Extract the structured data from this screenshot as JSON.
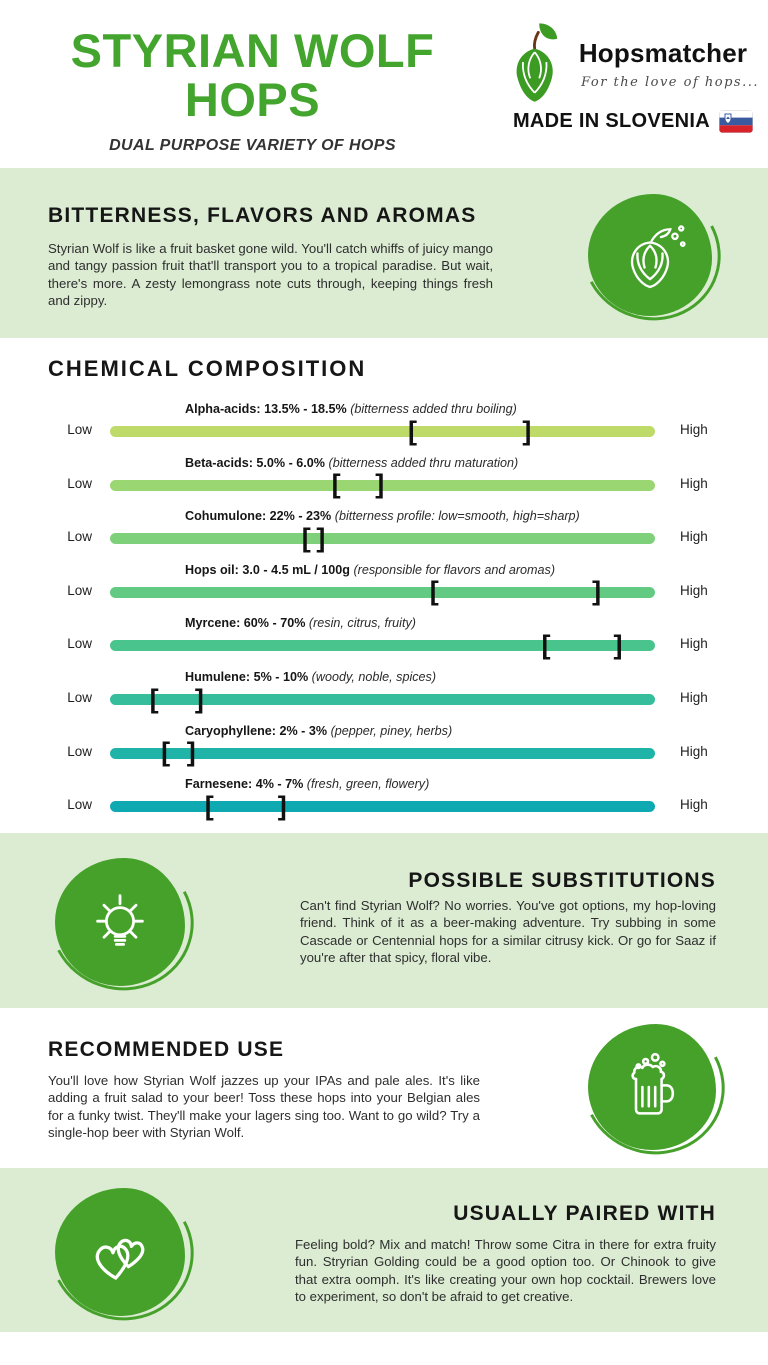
{
  "colors": {
    "title_green": "#43a42e",
    "section_bg_green": "#dcecd3",
    "icon_circle_green": "#46a12b",
    "heading_ink": "#161616",
    "body_text": "#2e2e2e"
  },
  "header": {
    "title_line1": "STYRIAN WOLF",
    "title_line2": "HOPS",
    "subtitle": "DUAL PURPOSE VARIETY OF HOPS",
    "brand_name": "Hopsmatcher",
    "brand_tagline": "For the love of hops...",
    "made_in": "MADE IN SLOVENIA"
  },
  "sections": {
    "aromas": {
      "title": "BITTERNESS, FLAVORS AND AROMAS",
      "body": "Styrian Wolf is like a fruit basket gone wild. You'll catch whiffs of juicy mango and tangy passion fruit that'll transport you to a tropical paradise. But wait, there's more. A zesty lemongrass note cuts through, keeping things fresh and zippy."
    },
    "chemical": {
      "title": "CHEMICAL COMPOSITION",
      "low_label": "Low",
      "high_label": "High",
      "range_marker_open": "[",
      "range_marker_close": "]",
      "bars": [
        {
          "label": "Alpha-acids: 13.5% - 18.5%",
          "note": "(bitterness added thru boiling)",
          "color": "#bedb69",
          "range_start_pct": 55.5,
          "range_end_pct": 76.5
        },
        {
          "label": "Beta-acids: 5.0% - 6.0%",
          "note": "(bitterness added thru maturation)",
          "color": "#9ad672",
          "range_start_pct": 41.5,
          "range_end_pct": 49.5
        },
        {
          "label": "Cohumulone: 22% - 23%",
          "note": "(bitterness profile: low=smooth, high=sharp)",
          "color": "#7fd07b",
          "range_start_pct": 36.0,
          "range_end_pct": 38.7
        },
        {
          "label": "Hops oil: 3.0 - 4.5 mL / 100g",
          "note": "(responsible for flavors and aromas)",
          "color": "#62ca82",
          "range_start_pct": 59.5,
          "range_end_pct": 89.3
        },
        {
          "label": "Myrcene: 60% - 70%",
          "note": "(resin, citrus, fruity)",
          "color": "#4ac48d",
          "range_start_pct": 80.0,
          "range_end_pct": 93.2
        },
        {
          "label": "Humulene: 5% - 10%",
          "note": "(woody, noble, spices)",
          "color": "#36bd9b",
          "range_start_pct": 8.1,
          "range_end_pct": 16.4
        },
        {
          "label": "Caryophyllene: 2% - 3%",
          "note": "(pepper, piney, herbs)",
          "color": "#20b3a7",
          "range_start_pct": 10.2,
          "range_end_pct": 14.9
        },
        {
          "label": "Farnesene: 4% - 7%",
          "note": "(fresh, green, flowery)",
          "color": "#0fa9b2",
          "range_start_pct": 18.2,
          "range_end_pct": 31.6
        }
      ]
    },
    "substitutions": {
      "title": "POSSIBLE SUBSTITUTIONS",
      "body": "Can't find Styrian Wolf? No worries. You've got options, my hop-loving friend. Think of it as a beer-making adventure. Try subbing in some Cascade or Centennial hops for a similar citrusy kick. Or go for Saaz if you're after that spicy, floral vibe."
    },
    "recommended": {
      "title": "RECOMMENDED USE",
      "body": "You'll love how Styrian Wolf jazzes up your IPAs and pale ales. It's like adding a fruit salad to your beer! Toss these hops into your Belgian ales for a funky twist. They'll make your lagers sing too. Want to go wild? Try a single-hop beer with Styrian Wolf."
    },
    "paired": {
      "title": "USUALLY PAIRED WITH",
      "body": "Feeling bold? Mix and match! Throw some Citra in there for extra fruity fun. Stryrian Golding could be a good option too. Or Chinook to give that extra oomph. It's like creating your own hop cocktail. Brewers love to experiment, so don't be afraid to get creative."
    }
  }
}
